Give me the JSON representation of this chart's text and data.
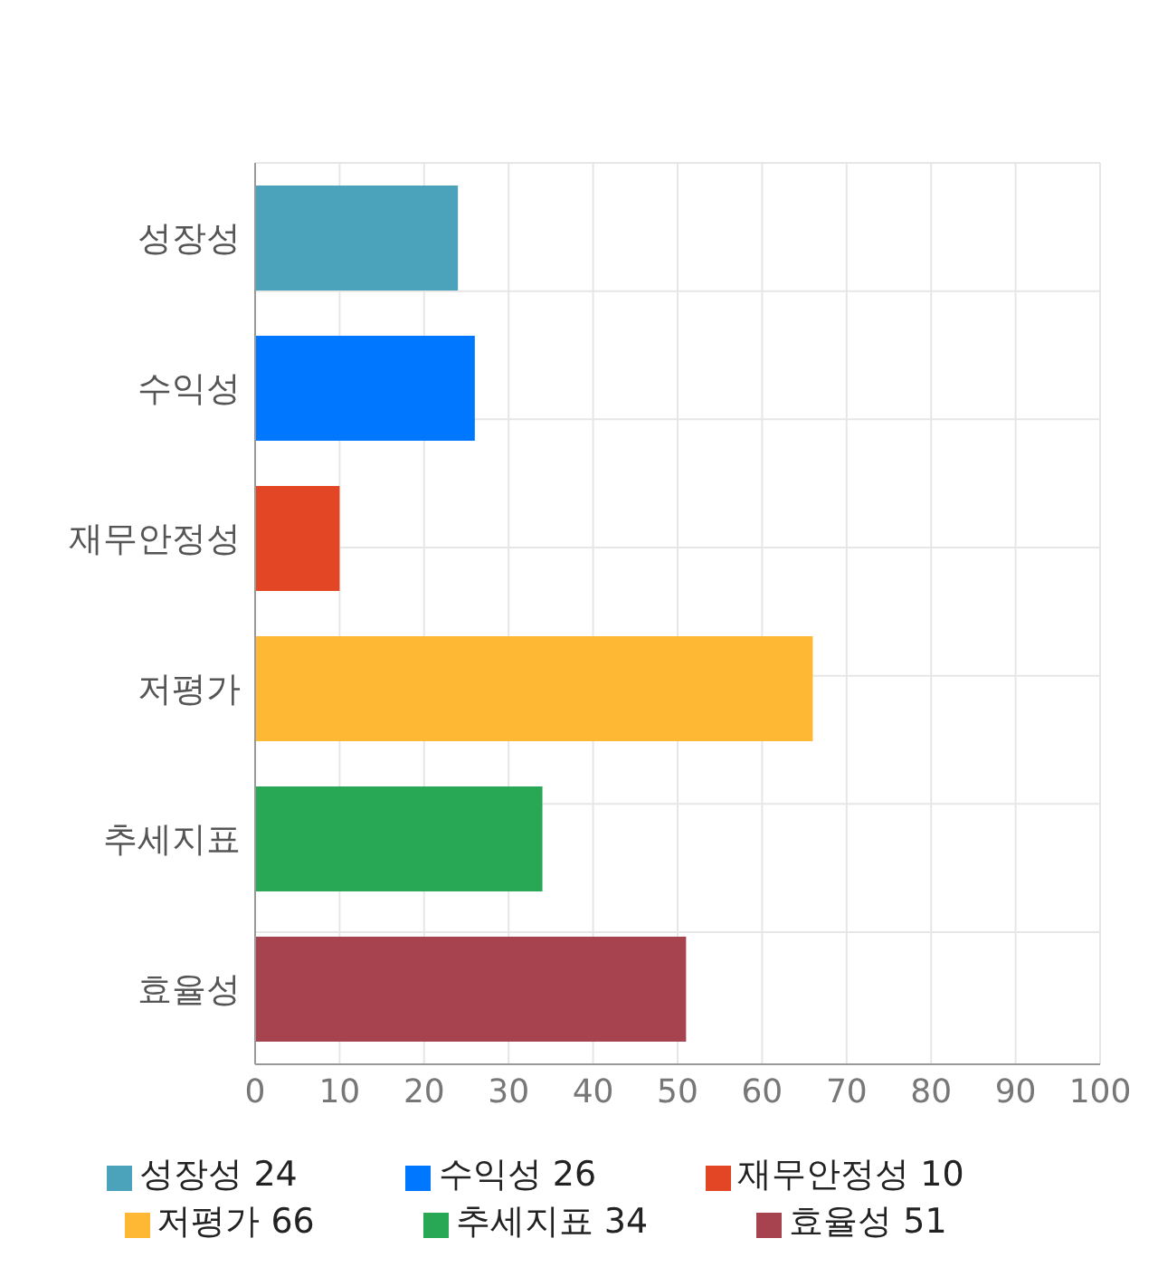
{
  "chart_data": {
    "type": "bar",
    "orientation": "horizontal",
    "stacked": true,
    "categories": [
      "성장성",
      "수익성",
      "재무안정성",
      "저평가",
      "추세지표",
      "효율성"
    ],
    "series": [
      {
        "name": "성장성 24",
        "color": "#4aa3ba",
        "values": [
          24,
          null,
          null,
          null,
          null,
          null
        ]
      },
      {
        "name": "수익성 26",
        "color": "#0077ff",
        "values": [
          null,
          26,
          null,
          null,
          null,
          null
        ]
      },
      {
        "name": "재무안정성 10",
        "color": "#e34624",
        "values": [
          null,
          null,
          10,
          null,
          null,
          null
        ]
      },
      {
        "name": "저평가 66",
        "color": "#ffb833",
        "values": [
          null,
          null,
          null,
          66,
          null,
          null
        ]
      },
      {
        "name": "추세지표 34",
        "color": "#28a755",
        "values": [
          null,
          null,
          null,
          null,
          34,
          null
        ]
      },
      {
        "name": "효율성 51",
        "color": "#a7424f",
        "values": [
          null,
          null,
          null,
          null,
          null,
          51
        ]
      }
    ],
    "xlim": [
      0,
      100
    ],
    "xticks": [
      0,
      10,
      20,
      30,
      40,
      50,
      60,
      70,
      80,
      90,
      100
    ],
    "grid": true,
    "legend": "bottom"
  }
}
